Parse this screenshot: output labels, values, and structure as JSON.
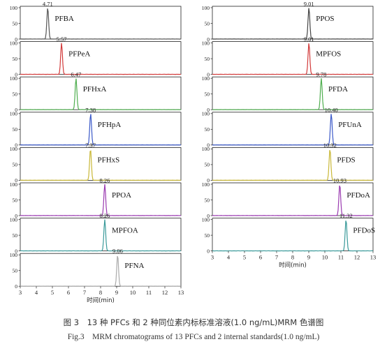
{
  "chart_data": [
    {
      "type": "line",
      "column": "left",
      "xlabel": "时间(min)",
      "xlim": [
        3,
        13
      ],
      "xticks": [
        3,
        4,
        5,
        6,
        7,
        8,
        9,
        10,
        11,
        12,
        13
      ],
      "panels": [
        {
          "label": "PFBA",
          "rt": 4.71,
          "rt_label": "4.71",
          "color": "#555555",
          "ylim": [
            0,
            100
          ],
          "yticks": [
            0,
            50,
            100
          ],
          "peak_height": 100
        },
        {
          "label": "PFPeA",
          "rt": 5.57,
          "rt_label": "5.57",
          "color": "#d23a3a",
          "ylim": [
            0,
            100
          ],
          "yticks": [
            0,
            50,
            100
          ],
          "peak_height": 100
        },
        {
          "label": "PFHxA",
          "rt": 6.47,
          "rt_label": "6.47",
          "color": "#4fae4f",
          "ylim": [
            0,
            100
          ],
          "yticks": [
            0,
            50,
            100
          ],
          "peak_height": 100
        },
        {
          "label": "PFHpA",
          "rt": 7.38,
          "rt_label": "7.38",
          "color": "#3a58c8",
          "ylim": [
            0,
            100
          ],
          "yticks": [
            0,
            50,
            100
          ],
          "peak_height": 100
        },
        {
          "label": "PFHxS",
          "rt": 7.37,
          "rt_label": "7.37",
          "color": "#c9b838",
          "ylim": [
            0,
            100
          ],
          "yticks": [
            0,
            50,
            100
          ],
          "peak_height": 100
        },
        {
          "label": "PPOA",
          "rt": 8.26,
          "rt_label": "8.26",
          "color": "#9a3ab0",
          "ylim": [
            0,
            100
          ],
          "yticks": [
            0,
            50,
            100
          ],
          "peak_height": 100
        },
        {
          "label": "MPFOA",
          "rt": 8.26,
          "rt_label": "8.26",
          "color": "#3a9a9a",
          "ylim": [
            0,
            100
          ],
          "yticks": [
            0,
            50,
            100
          ],
          "peak_height": 100
        },
        {
          "label": "PFNA",
          "rt": 9.06,
          "rt_label": "9.06",
          "color": "#aaaaaa",
          "ylim": [
            0,
            100
          ],
          "yticks": [
            0,
            50,
            100
          ],
          "peak_height": 100
        }
      ]
    },
    {
      "type": "line",
      "column": "right",
      "xlabel": "时间(min)",
      "xlim": [
        3,
        13
      ],
      "xticks": [
        3,
        4,
        5,
        6,
        7,
        8,
        9,
        10,
        11,
        12,
        13
      ],
      "panels": [
        {
          "label": "PPOS",
          "rt": 9.01,
          "rt_label": "9.01",
          "color": "#444444",
          "ylim": [
            0,
            100
          ],
          "yticks": [
            0,
            50,
            100
          ],
          "peak_height": 100
        },
        {
          "label": "MPFOS",
          "rt": 9.01,
          "rt_label": "9.01",
          "color": "#d23a3a",
          "ylim": [
            0,
            100
          ],
          "yticks": [
            0,
            50,
            100
          ],
          "peak_height": 100
        },
        {
          "label": "PFDA",
          "rt": 9.78,
          "rt_label": "9.78",
          "color": "#4fae4f",
          "ylim": [
            0,
            100
          ],
          "yticks": [
            0,
            50,
            100
          ],
          "peak_height": 100
        },
        {
          "label": "PFUnA",
          "rt": 10.4,
          "rt_label": "10.40",
          "color": "#3a58c8",
          "ylim": [
            0,
            100
          ],
          "yticks": [
            0,
            50,
            100
          ],
          "peak_height": 100
        },
        {
          "label": "PFDS",
          "rt": 10.32,
          "rt_label": "10.32",
          "color": "#c9b838",
          "ylim": [
            0,
            100
          ],
          "yticks": [
            0,
            50,
            100
          ],
          "peak_height": 100
        },
        {
          "label": "PFDoA",
          "rt": 10.93,
          "rt_label": "10.93",
          "color": "#9a3ab0",
          "ylim": [
            0,
            100
          ],
          "yticks": [
            0,
            50,
            100
          ],
          "peak_height": 100
        },
        {
          "label": "PFDoS",
          "rt": 11.32,
          "rt_label": "11.32",
          "color": "#3a9a9a",
          "ylim": [
            0,
            100
          ],
          "yticks": [
            0,
            50,
            100
          ],
          "peak_height": 100
        }
      ]
    }
  ],
  "caption": {
    "chinese": "图 3　13 种 PFCs 和 2 种同位素内标标准溶液(1.0 ng/mL)MRM 色谱图",
    "english": "Fig.3　MRM chromatograms of 13 PFCs and 2 internal standards(1.0 ng/mL)"
  }
}
